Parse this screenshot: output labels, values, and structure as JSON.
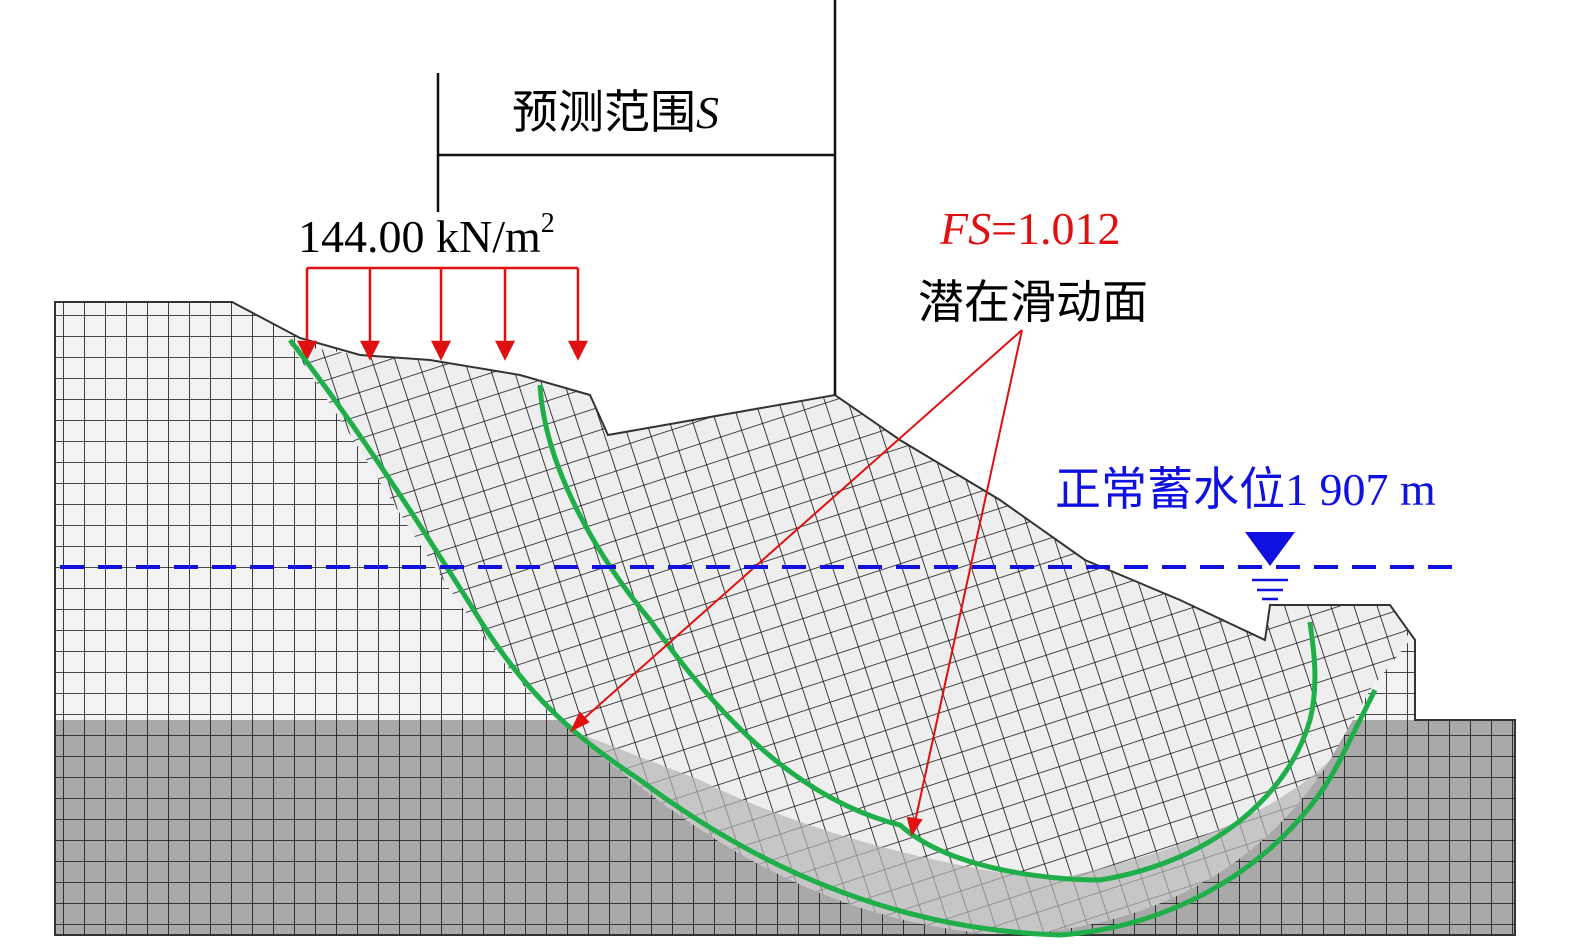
{
  "annotations": {
    "range": {
      "text": "预测范围",
      "italic": "S"
    },
    "load": {
      "text": "144.00 kN/m",
      "superscript": "2"
    },
    "fs": {
      "italic": "FS",
      "text": "=1.012"
    },
    "slip": {
      "text": "潜在滑动面"
    },
    "water": {
      "text": "正常蓄水位1 907 m"
    }
  }
}
